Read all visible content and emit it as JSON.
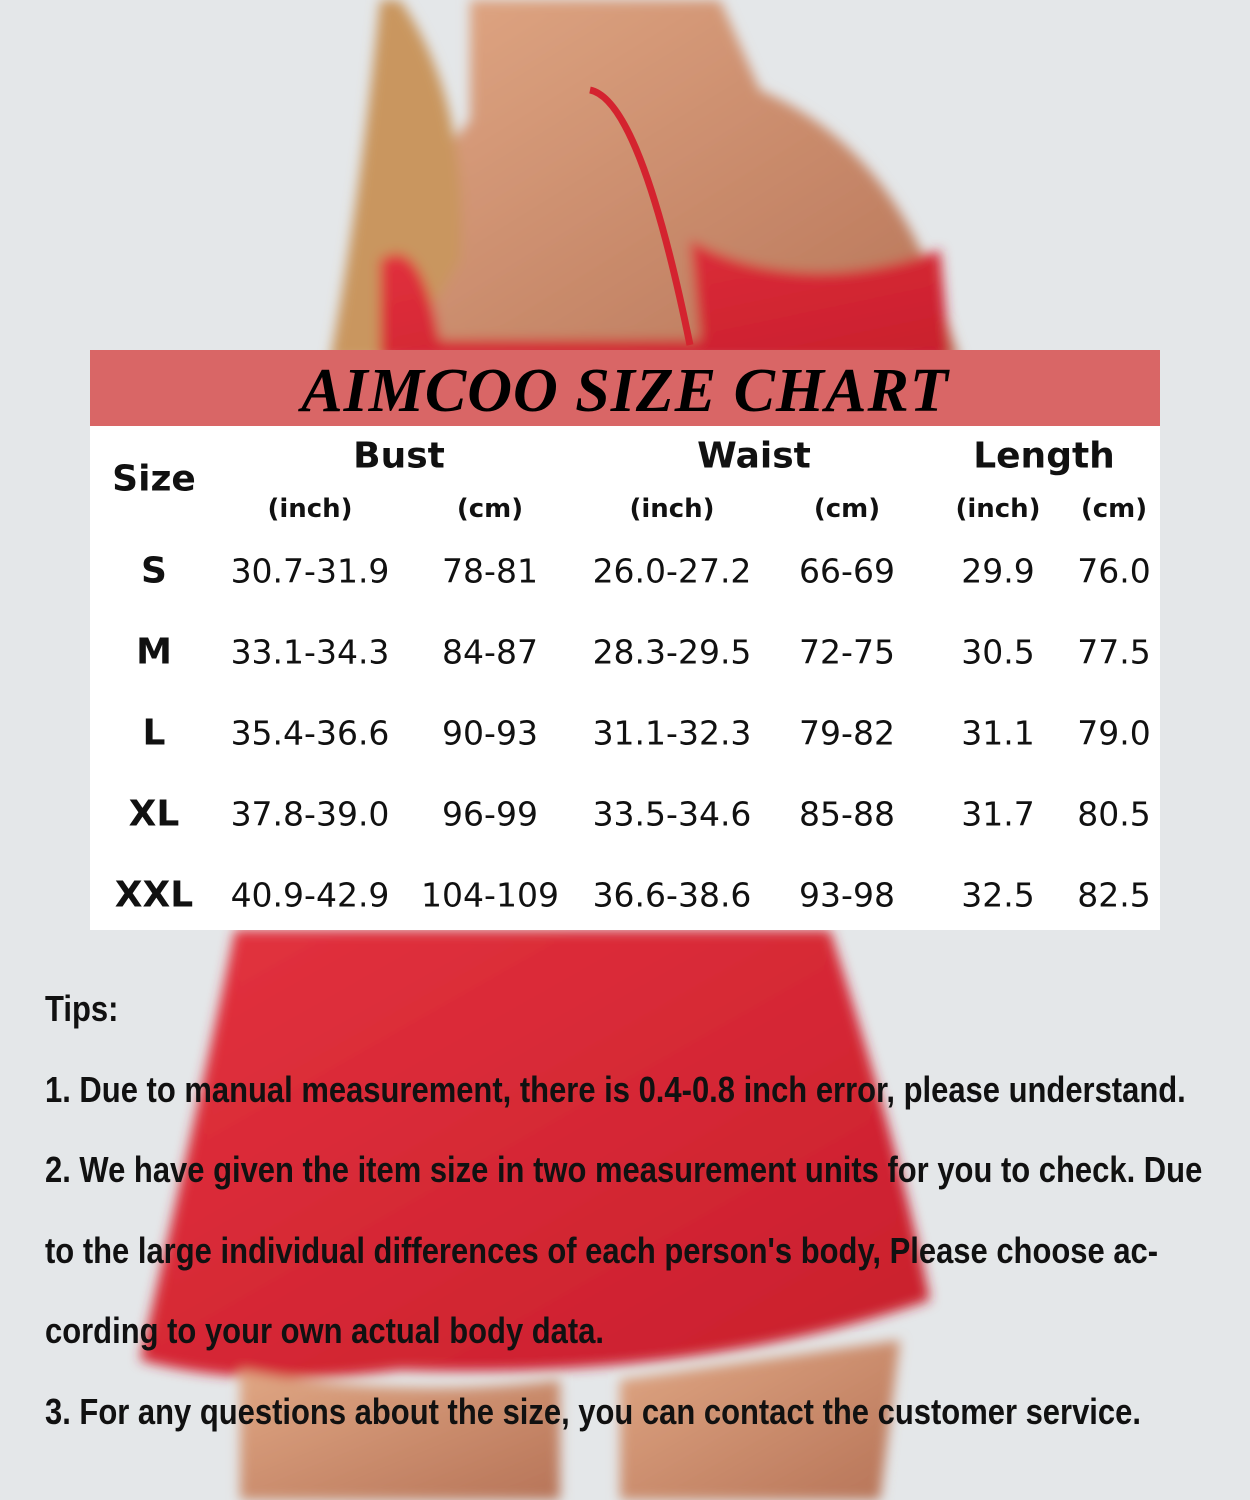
{
  "chart": {
    "title": "AIMCOO SIZE CHART",
    "header_color": "#d96666",
    "size_header": "Size",
    "groups": [
      "Bust",
      "Waist",
      "Length"
    ],
    "units": [
      "(inch)",
      "(cm)",
      "(inch)",
      "(cm)",
      "(inch)",
      "(cm)"
    ],
    "rows": [
      {
        "size": "S",
        "values": [
          "30.7-31.9",
          "78-81",
          "26.0-27.2",
          "66-69",
          "29.9",
          "76.0"
        ]
      },
      {
        "size": "M",
        "values": [
          "33.1-34.3",
          "84-87",
          "28.3-29.5",
          "72-75",
          "30.5",
          "77.5"
        ]
      },
      {
        "size": "L",
        "values": [
          "35.4-36.6",
          "90-93",
          "31.1-32.3",
          "79-82",
          "31.1",
          "79.0"
        ]
      },
      {
        "size": "XL",
        "values": [
          "37.8-39.0",
          "96-99",
          "33.5-34.6",
          "85-88",
          "31.7",
          "80.5"
        ]
      },
      {
        "size": "XXL",
        "values": [
          "40.9-42.9",
          "104-109",
          "36.6-38.6",
          "93-98",
          "32.5",
          "82.5"
        ]
      }
    ]
  },
  "tips": {
    "lines": [
      "Tips:",
      "1. Due to manual measurement, there is 0.4-0.8 inch error, please understand.",
      "2. We have given the item size in two measurement units for you to check. Due",
      "to the large individual differences of each person's body, Please choose ac-",
      "cording to your own actual body data.",
      "3. For any questions about the size, you can contact the customer service."
    ]
  }
}
